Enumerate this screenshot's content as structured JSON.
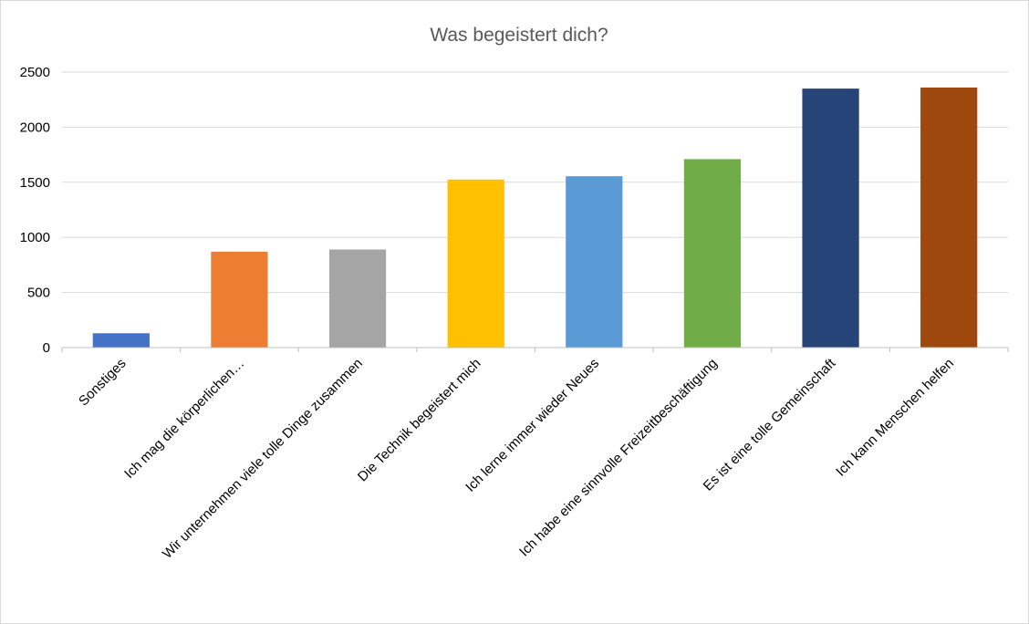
{
  "chart_data": {
    "type": "bar",
    "title": "Was begeistert dich?",
    "xlabel": "",
    "ylabel": "",
    "ylim": [
      0,
      2500
    ],
    "yticks": [
      0,
      500,
      1000,
      1500,
      2000,
      2500
    ],
    "grid": true,
    "legend": "none",
    "categories": [
      "Sonstiges",
      "Ich mag die körperlichen…",
      "Wir unternehmen viele tolle Dinge zusammen",
      "Die Technik begeistert mich",
      "Ich lerne immer wieder Neues",
      "Ich habe eine sinnvolle Freizeitbeschäftigung",
      "Es ist eine tolle Gemeinschaft",
      "Ich kann Menschen helfen"
    ],
    "values": [
      130,
      870,
      890,
      1525,
      1555,
      1710,
      2350,
      2360
    ],
    "colors": [
      "#4472C4",
      "#ED7D31",
      "#A5A5A5",
      "#FFC000",
      "#5B9BD5",
      "#70AD47",
      "#264478",
      "#9E480E"
    ]
  }
}
